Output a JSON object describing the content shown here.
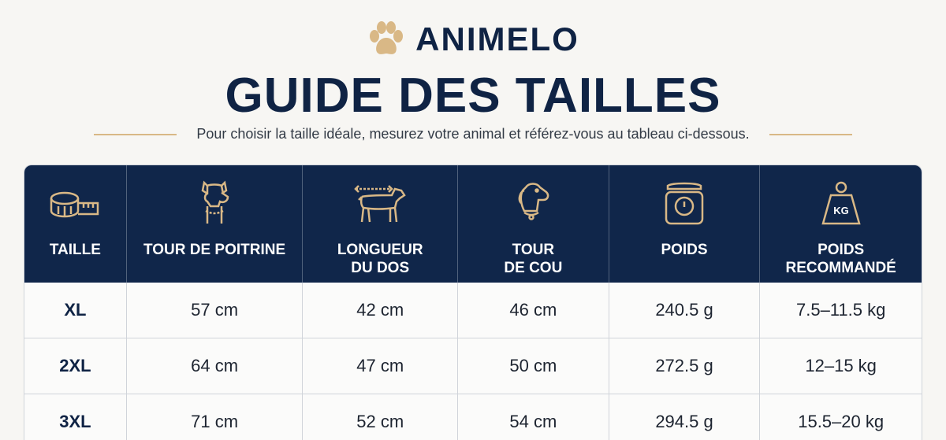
{
  "brand": {
    "name": "ANIMELO",
    "logo_icon": "paw-icon",
    "logo_color": "#d9b886"
  },
  "title": "GUIDE DES TAILLES",
  "subtitle": "Pour choisir la taille idéale, mesurez votre animal et référez-vous au tableau ci-dessous.",
  "colors": {
    "header_bg": "#10264a",
    "accent": "#d9b886",
    "text": "#0f2344"
  },
  "table": {
    "headers": [
      {
        "label": "TAILLE",
        "icon": "tape-measure-icon"
      },
      {
        "label": "TOUR DE POITRINE",
        "icon": "dog-chest-icon"
      },
      {
        "label": "LONGUEUR\nDU DOS",
        "icon": "dog-back-length-icon"
      },
      {
        "label": "TOUR\nDE COU",
        "icon": "dog-neck-icon"
      },
      {
        "label": "POIDS",
        "icon": "scale-icon"
      },
      {
        "label": "POIDS\nRECOMMANDÉ",
        "icon": "kg-weight-icon"
      }
    ],
    "rows": [
      [
        "XL",
        "57 cm",
        "42 cm",
        "46 cm",
        "240.5 g",
        "7.5–11.5 kg"
      ],
      [
        "2XL",
        "64 cm",
        "47 cm",
        "50 cm",
        "272.5 g",
        "12–15 kg"
      ],
      [
        "3XL",
        "71 cm",
        "52 cm",
        "54 cm",
        "294.5 g",
        "15.5–20 kg"
      ]
    ]
  }
}
